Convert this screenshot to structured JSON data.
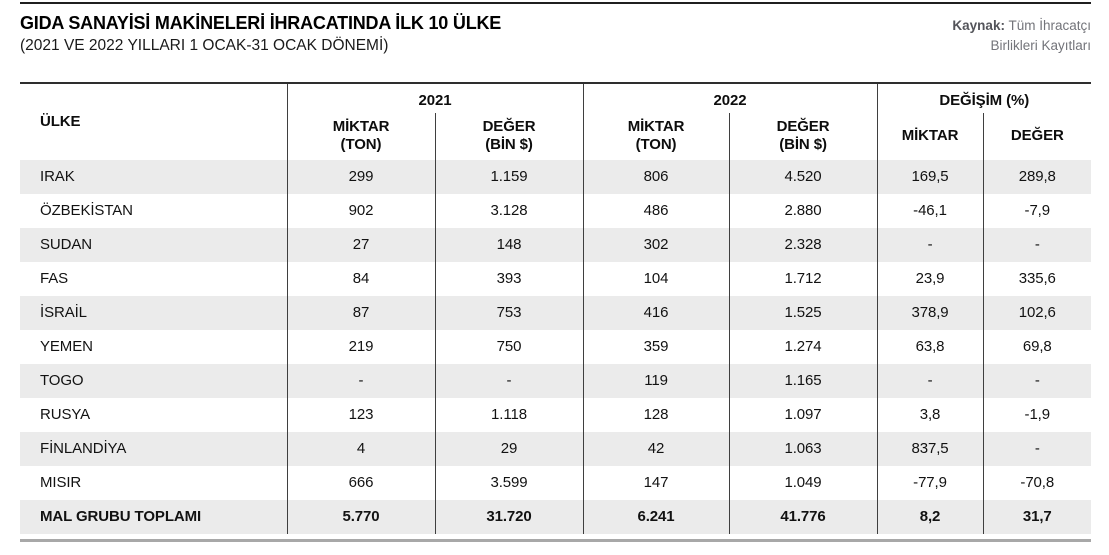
{
  "page": {
    "title": "GIDA SANAYİSİ MAKİNELERİ İHRACATINDA İLK 10 ÜLKE",
    "subtitle": "(2021 VE 2022 YILLARI 1 OCAK-31 OCAK DÖNEMİ)",
    "source": {
      "label": "Kaynak:",
      "line1": "Tüm İhracatçı",
      "line2": "Birlikleri Kayıtları"
    }
  },
  "chart_data": {
    "type": "table",
    "title": "GIDA SANAYİSİ MAKİNELERİ İHRACATINDA İLK 10 ÜLKE",
    "subtitle": "(2021 VE 2022 YILLARI 1 OCAK-31 OCAK DÖNEMİ)",
    "header": {
      "country": "ÜLKE",
      "groups": [
        {
          "label": "2021"
        },
        {
          "label": "2022"
        },
        {
          "label": "DEĞİŞİM (%)"
        }
      ],
      "subcolumns": [
        {
          "line1": "MİKTAR",
          "line2": "(TON)"
        },
        {
          "line1": "DEĞER",
          "line2": "(BİN $)"
        },
        {
          "line1": "MİKTAR",
          "line2": "(TON)"
        },
        {
          "line1": "DEĞER",
          "line2": "(BİN $)"
        },
        {
          "line1": "MİKTAR",
          "line2": ""
        },
        {
          "line1": "DEĞER",
          "line2": ""
        }
      ]
    },
    "rows": [
      {
        "country": "IRAK",
        "values": [
          "299",
          "1.159",
          "806",
          "4.520",
          "169,5",
          "289,8"
        ]
      },
      {
        "country": "ÖZBEKİSTAN",
        "values": [
          "902",
          "3.128",
          "486",
          "2.880",
          "-46,1",
          "-7,9"
        ]
      },
      {
        "country": "SUDAN",
        "values": [
          "27",
          "148",
          "302",
          "2.328",
          "-",
          "-"
        ]
      },
      {
        "country": "FAS",
        "values": [
          "84",
          "393",
          "104",
          "1.712",
          "23,9",
          "335,6"
        ]
      },
      {
        "country": "İSRAİL",
        "values": [
          "87",
          "753",
          "416",
          "1.525",
          "378,9",
          "102,6"
        ]
      },
      {
        "country": "YEMEN",
        "values": [
          "219",
          "750",
          "359",
          "1.274",
          "63,8",
          "69,8"
        ]
      },
      {
        "country": "TOGO",
        "values": [
          "-",
          "-",
          "119",
          "1.165",
          "-",
          "-"
        ]
      },
      {
        "country": "RUSYA",
        "values": [
          "123",
          "1.118",
          "128",
          "1.097",
          "3,8",
          "-1,9"
        ]
      },
      {
        "country": "FİNLANDİYA",
        "values": [
          "4",
          "29",
          "42",
          "1.063",
          "837,5",
          "-"
        ]
      },
      {
        "country": "MISIR",
        "values": [
          "666",
          "3.599",
          "147",
          "1.049",
          "-77,9",
          "-70,8"
        ]
      }
    ],
    "total_row": {
      "country": "MAL GRUBU TOPLAMI",
      "values": [
        "5.770",
        "31.720",
        "6.241",
        "41.776",
        "8,2",
        "31,7"
      ]
    }
  },
  "colors": {
    "row_stripe": "#ebebeb",
    "grid_line": "#3f3f3f",
    "top_rule": "#1f1f1f",
    "bottom_rule": "#a8a8a8",
    "text": "#121212",
    "source_text": "#73747a"
  }
}
